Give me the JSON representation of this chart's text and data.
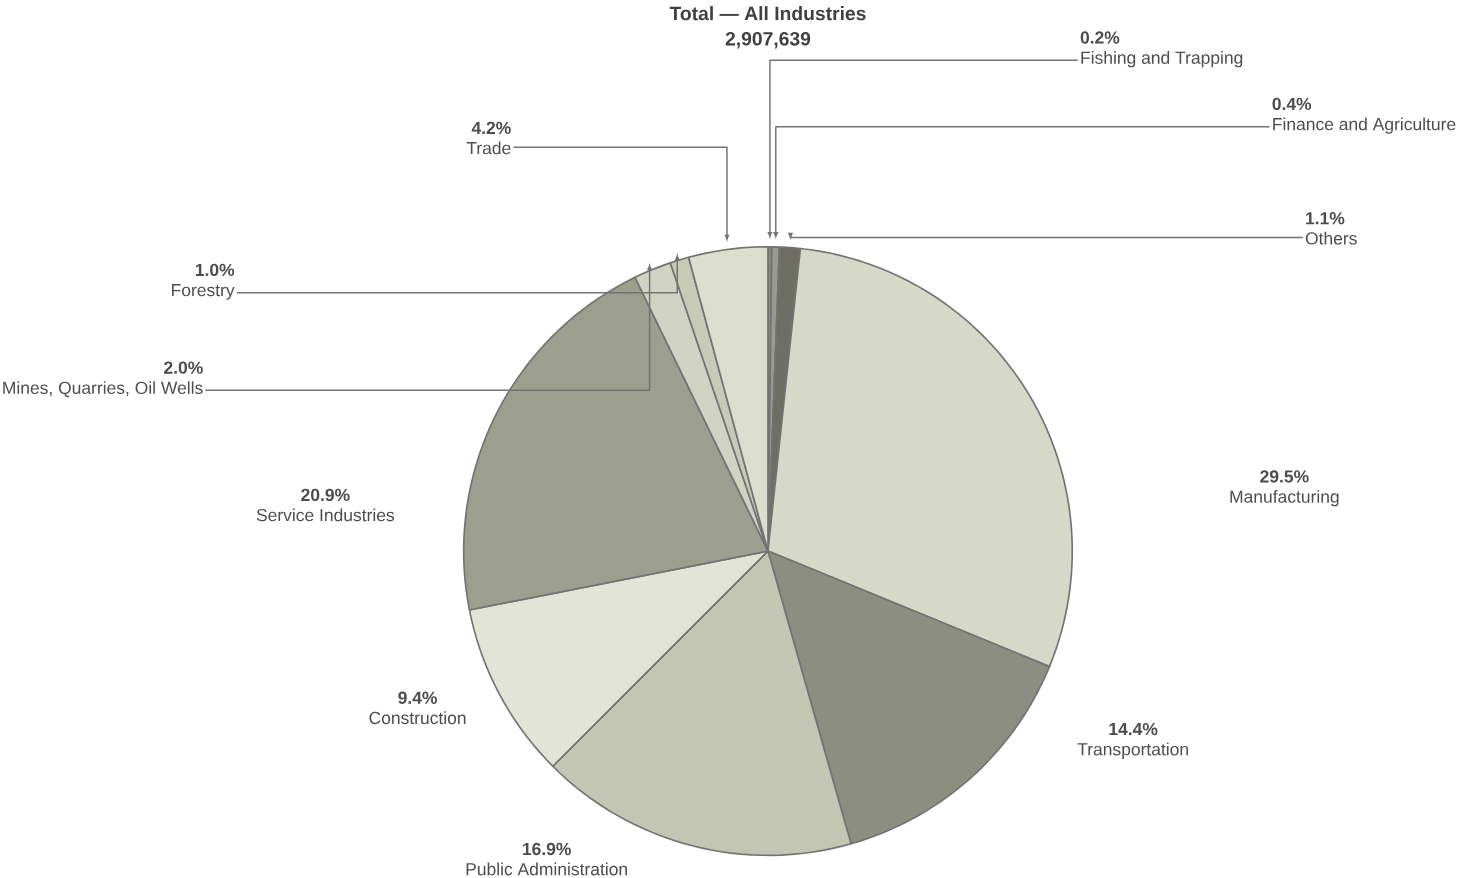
{
  "chart_data": {
    "type": "pie",
    "title": "Total — All Industries",
    "subtitle": "2,907,639",
    "categories": [
      "Fishing and Trapping",
      "Finance and Agriculture",
      "Others",
      "Manufacturing",
      "Transportation",
      "Public Administration",
      "Construction",
      "Service Industries",
      "Mines, Quarries, Oil Wells",
      "Forestry",
      "Trade"
    ],
    "values": [
      0.2,
      0.4,
      1.1,
      29.5,
      14.4,
      16.9,
      9.4,
      20.9,
      2.0,
      1.0,
      4.2
    ],
    "value_labels": [
      "0.2%",
      "0.4%",
      "1.1%",
      "29.5%",
      "14.4%",
      "16.9%",
      "9.4%",
      "20.9%",
      "2.0%",
      "1.0%",
      "4.2%"
    ],
    "colors": [
      "#8a8a80",
      "#9a9a90",
      "#6e6e64",
      "#d6d8c8",
      "#8c8e80",
      "#c4c6b4",
      "#e2e4d6",
      "#9c9e8e",
      "#d0d2c2",
      "#c8cab8",
      "#dcdecd"
    ]
  }
}
